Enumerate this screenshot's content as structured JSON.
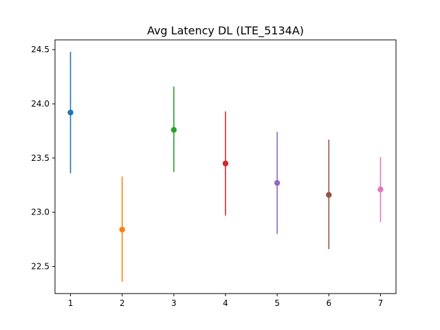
{
  "chart_data": {
    "type": "scatter",
    "title": "Avg Latency DL (LTE_5134A)",
    "xlabel": "",
    "ylabel": "",
    "x": [
      1,
      2,
      3,
      4,
      5,
      6,
      7
    ],
    "values": [
      23.92,
      22.84,
      23.76,
      23.45,
      23.27,
      23.16,
      23.21
    ],
    "error_low": [
      23.36,
      22.36,
      23.37,
      22.97,
      22.8,
      22.66,
      22.91
    ],
    "error_high": [
      24.48,
      23.33,
      24.16,
      23.93,
      23.74,
      23.67,
      23.51
    ],
    "colors": [
      "#1f77b4",
      "#ff7f0e",
      "#2ca02c",
      "#d62728",
      "#9467bd",
      "#8c564b",
      "#e377c2"
    ],
    "xlim": [
      0.7,
      7.3
    ],
    "ylim": [
      22.25,
      24.59
    ],
    "xticks": [
      "1",
      "2",
      "3",
      "4",
      "5",
      "6",
      "7"
    ],
    "yticks": [
      "22.5",
      "23.0",
      "23.5",
      "24.0",
      "24.5"
    ],
    "grid": false,
    "legend": "none"
  }
}
